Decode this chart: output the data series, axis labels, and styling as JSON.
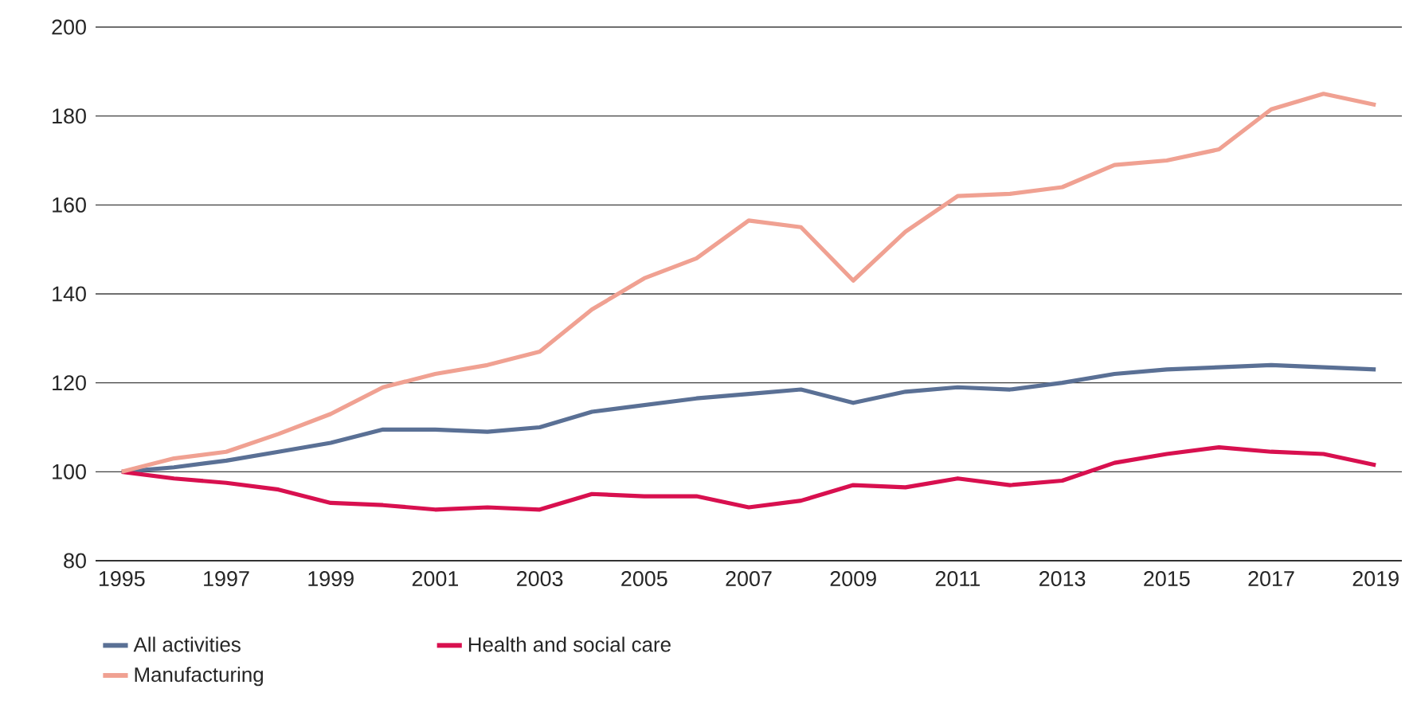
{
  "chart_data": {
    "type": "line",
    "x": [
      1995,
      1996,
      1997,
      1998,
      1999,
      2000,
      2001,
      2002,
      2003,
      2004,
      2005,
      2006,
      2007,
      2008,
      2009,
      2010,
      2011,
      2012,
      2013,
      2014,
      2015,
      2016,
      2017,
      2018,
      2019
    ],
    "series": [
      {
        "name": "All activities",
        "color": "#5a7095",
        "values": [
          100,
          101,
          102.5,
          104.5,
          106.5,
          109.5,
          109.5,
          109,
          110,
          113.5,
          115,
          116.5,
          117.5,
          118.5,
          115.5,
          118,
          119,
          118.5,
          120,
          122,
          123,
          123.5,
          124,
          123.5,
          123
        ]
      },
      {
        "name": "Health and social care",
        "color": "#d8104f",
        "values": [
          100,
          98.5,
          97.5,
          96,
          93,
          92.5,
          91.5,
          92,
          91.5,
          95,
          94.5,
          94.5,
          92,
          93.5,
          97,
          96.5,
          98.5,
          97,
          98,
          102,
          104,
          105.5,
          104.5,
          104,
          101.5
        ]
      },
      {
        "name": "Manufacturing",
        "color": "#f0a192",
        "values": [
          100,
          103,
          104.5,
          108.5,
          113,
          119,
          122,
          124,
          127,
          136.5,
          143.5,
          148,
          156.5,
          155,
          143,
          154,
          162,
          162.5,
          164,
          169,
          170,
          172.5,
          181.5,
          185,
          182.5
        ]
      }
    ],
    "xlim": [
      1994.5,
      2019.5
    ],
    "xticks": [
      1995,
      1997,
      1999,
      2001,
      2003,
      2005,
      2007,
      2009,
      2011,
      2013,
      2015,
      2017,
      2019
    ],
    "ylim": [
      80,
      200
    ],
    "yticks": [
      80,
      100,
      120,
      140,
      160,
      180,
      200
    ],
    "grid": "y",
    "legend": "bottom",
    "marker": "none",
    "line_style": "solid"
  }
}
